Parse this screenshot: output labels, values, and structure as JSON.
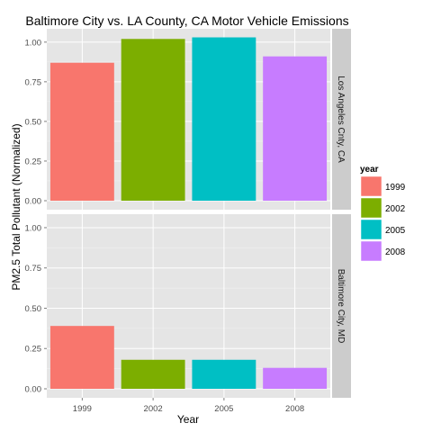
{
  "chart_data": {
    "type": "bar",
    "title": "Baltimore City vs. LA County, CA Motor Vehicle Emissions",
    "xlabel": "Year",
    "ylabel": "PM2.5 Total Pollutant (Normalized)",
    "categories": [
      "1999",
      "2002",
      "2005",
      "2008"
    ],
    "ylim": [
      0,
      1.05
    ],
    "yticks": [
      0.0,
      0.25,
      0.5,
      0.75,
      1.0
    ],
    "ytick_labels": [
      "0.00",
      "0.25",
      "0.50",
      "0.75",
      "1.00"
    ],
    "legend_position": "right",
    "facets": [
      {
        "label": "Los Angeles Cnty, CA",
        "values": [
          0.87,
          1.02,
          1.03,
          0.91
        ]
      },
      {
        "label": "Baltimore City, MD",
        "values": [
          0.39,
          0.18,
          0.18,
          0.13
        ]
      }
    ],
    "legend": {
      "title": "year",
      "entries": [
        {
          "label": "1999",
          "color": "#F8766D"
        },
        {
          "label": "2002",
          "color": "#7CAE00"
        },
        {
          "label": "2005",
          "color": "#00BFC4"
        },
        {
          "label": "2008",
          "color": "#C77CFF"
        }
      ]
    }
  }
}
